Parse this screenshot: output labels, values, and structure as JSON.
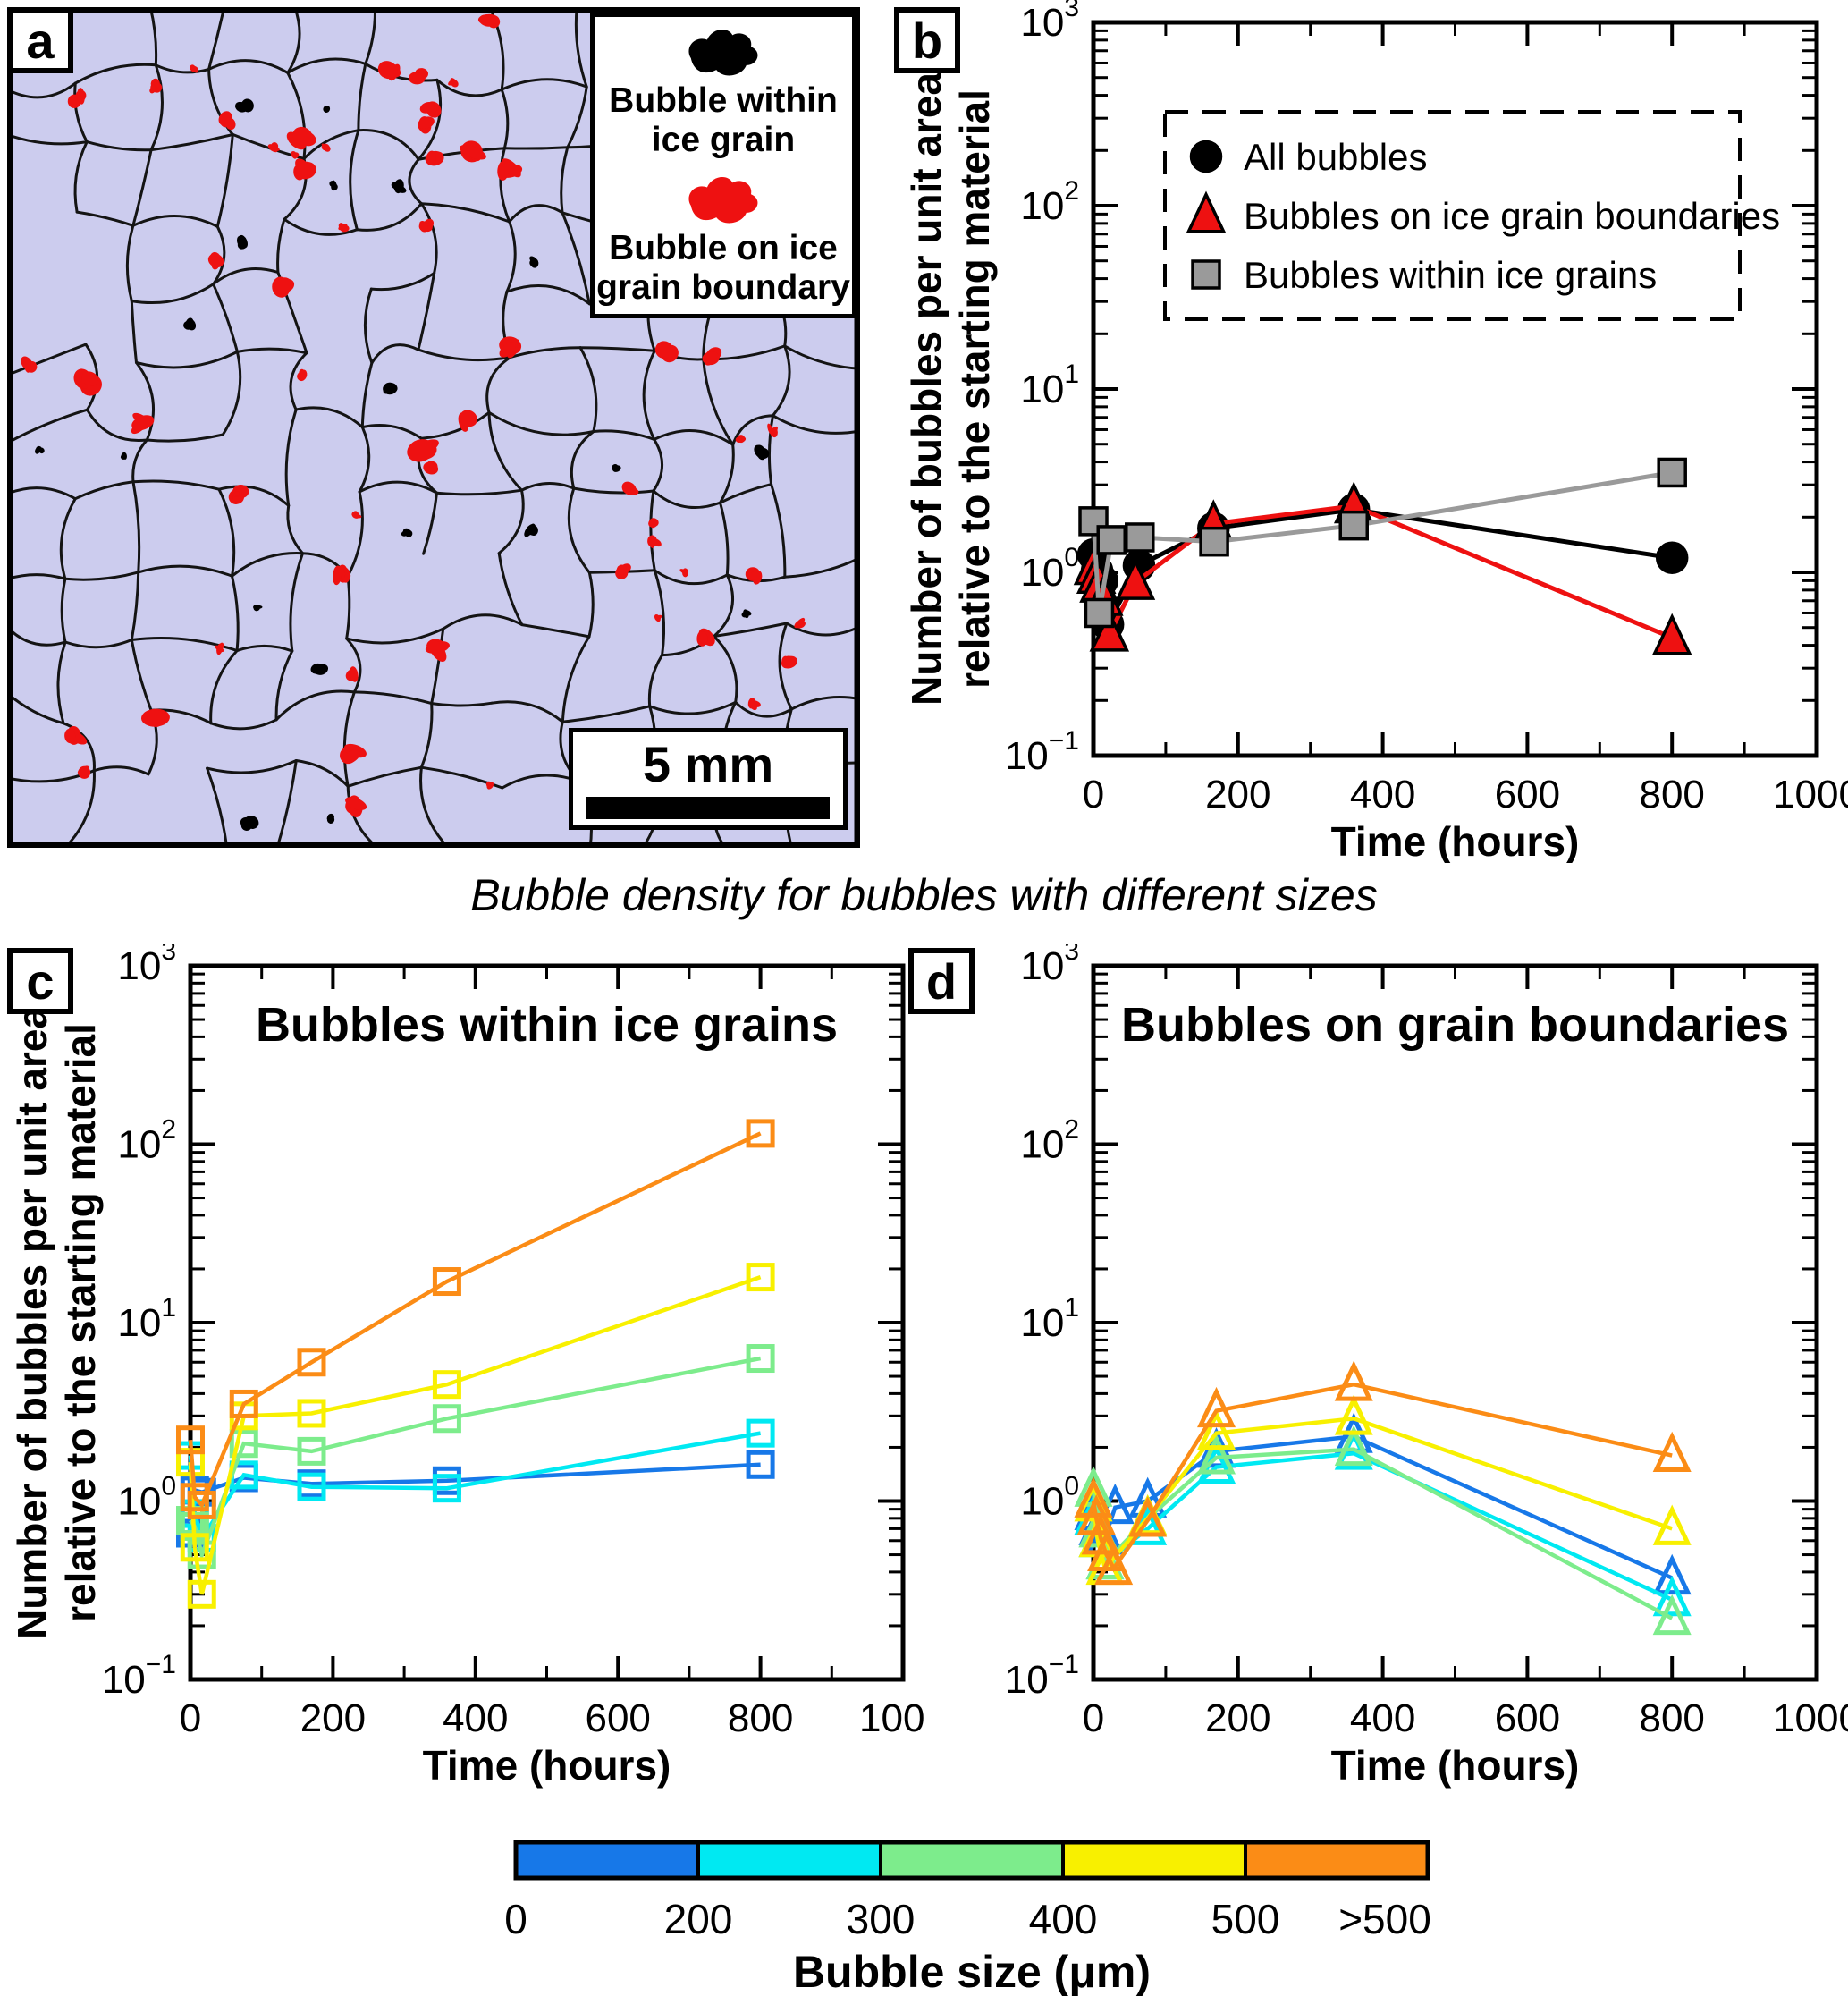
{
  "caption": "Bubble density for bubbles with different sizes",
  "panels": {
    "a": "a",
    "b": "b",
    "c": "c",
    "d": "d"
  },
  "panel_a": {
    "background": "#ccccee",
    "boundary_color": "#141414",
    "bubble_within_color": "#000000",
    "bubble_on_boundary_color": "#ee1111",
    "legend": {
      "items": [
        {
          "icon": "bubble-within-grain-icon",
          "color": "#000000",
          "lines": [
            "Bubble within",
            "ice grain"
          ]
        },
        {
          "icon": "bubble-on-boundary-icon",
          "color": "#ee1111",
          "lines": [
            "Bubble on ice",
            "grain boundary"
          ]
        }
      ]
    },
    "scale_bar": {
      "label": "5 mm"
    }
  },
  "colorbar": {
    "title": "Bubble size (μm)",
    "boundary_labels": [
      "0",
      "200",
      "300",
      "400",
      "500"
    ],
    "end_label": ">500",
    "segment_colors": [
      "#1778e8",
      "#00e9f2",
      "#7dec8c",
      "#f8f000",
      "#fb8c16"
    ]
  },
  "chart_data": [
    {
      "id": "b",
      "type": "line",
      "title": null,
      "xlabel": "Time (hours)",
      "ylabel_lines": [
        "Number of bubbles per unit area",
        "relative to the starting material"
      ],
      "xlim": [
        0,
        1000
      ],
      "xtick_step": 200,
      "xminor_step": 100,
      "yexp": [
        -1,
        3
      ],
      "legend_show": true,
      "series": [
        {
          "name": "All bubbles",
          "marker": "circle",
          "color": "#000000",
          "edge": "#000000",
          "filled": true,
          "x": [
            0,
            5,
            12,
            20,
            63,
            166,
            360,
            800
          ],
          "y": [
            1.25,
            1.02,
            0.9,
            0.52,
            1.09,
            1.74,
            2.2,
            1.2
          ]
        },
        {
          "name": "Bubbles on ice grain boundaries",
          "marker": "triangle",
          "color": "#ee1111",
          "edge": "#000000",
          "filled": true,
          "x": [
            0,
            4,
            8,
            14,
            22,
            58,
            166,
            360,
            800
          ],
          "y": [
            1.06,
            0.95,
            0.85,
            0.72,
            0.46,
            0.88,
            1.84,
            2.3,
            0.44
          ]
        },
        {
          "name": "Bubbles within ice grains",
          "marker": "square",
          "color": "#9a9a9a",
          "edge": "#000000",
          "filled": true,
          "x": [
            0,
            8,
            25,
            64,
            167,
            360,
            800
          ],
          "y": [
            1.9,
            0.6,
            1.5,
            1.55,
            1.47,
            1.8,
            3.5
          ]
        }
      ]
    },
    {
      "id": "c",
      "type": "line",
      "title": "Bubbles within ice grains",
      "xlabel": "Time (hours)",
      "ylabel_lines": [
        "Number of bubbles per unit area",
        "relative to the starting material"
      ],
      "xlim": [
        0,
        1000
      ],
      "xtick_step": 200,
      "xminor_step": 100,
      "yexp": [
        -1,
        3
      ],
      "legend_show": false,
      "series": [
        {
          "name": "size-0-200",
          "marker": "square",
          "color": "#1778e8",
          "filled": false,
          "x": [
            0,
            6,
            16,
            75,
            170,
            360,
            800
          ],
          "y": [
            0.66,
            1.15,
            1.12,
            1.35,
            1.25,
            1.3,
            1.6
          ]
        },
        {
          "name": "size-200-300",
          "marker": "square",
          "color": "#00e9f2",
          "filled": false,
          "x": [
            0,
            6,
            16,
            75,
            170,
            360,
            800
          ],
          "y": [
            1.8,
            0.85,
            0.62,
            1.4,
            1.2,
            1.18,
            2.4
          ]
        },
        {
          "name": "size-300-400",
          "marker": "square",
          "color": "#7dec8c",
          "filled": false,
          "x": [
            0,
            6,
            16,
            75,
            170,
            360,
            800
          ],
          "y": [
            0.78,
            0.72,
            0.5,
            2.1,
            1.9,
            2.9,
            6.3
          ]
        },
        {
          "name": "size-400-500",
          "marker": "square",
          "color": "#f8f000",
          "filled": false,
          "x": [
            0,
            6,
            16,
            75,
            170,
            360,
            800
          ],
          "y": [
            1.65,
            0.55,
            0.3,
            3.0,
            3.1,
            4.5,
            18
          ]
        },
        {
          "name": "size-gt-500",
          "marker": "square",
          "color": "#fb8c16",
          "filled": false,
          "x": [
            0,
            6,
            16,
            75,
            170,
            360,
            800
          ],
          "y": [
            2.2,
            1.05,
            0.95,
            3.5,
            6.0,
            17,
            115
          ]
        }
      ]
    },
    {
      "id": "d",
      "type": "line",
      "title": "Bubbles on grain boundaries",
      "xlabel": "Time (hours)",
      "ylabel_lines": null,
      "xlim": [
        0,
        1000
      ],
      "xtick_step": 200,
      "xminor_step": 100,
      "yexp": [
        -1,
        3
      ],
      "legend_show": false,
      "series": [
        {
          "name": "size-0-200",
          "marker": "triangle",
          "color": "#1778e8",
          "filled": false,
          "x": [
            0,
            6,
            16,
            30,
            75,
            170,
            360,
            800
          ],
          "y": [
            0.85,
            0.7,
            0.62,
            0.92,
            1.0,
            1.9,
            2.3,
            0.37
          ]
        },
        {
          "name": "size-200-300",
          "marker": "triangle",
          "color": "#00e9f2",
          "filled": false,
          "x": [
            0,
            6,
            16,
            75,
            170,
            360,
            800
          ],
          "y": [
            0.8,
            0.6,
            0.45,
            0.7,
            1.55,
            1.85,
            0.28
          ]
        },
        {
          "name": "size-300-400",
          "marker": "triangle",
          "color": "#7dec8c",
          "filled": false,
          "x": [
            0,
            6,
            16,
            75,
            170,
            360,
            800
          ],
          "y": [
            1.15,
            0.68,
            0.45,
            0.8,
            1.75,
            1.95,
            0.22
          ]
        },
        {
          "name": "size-400-500",
          "marker": "triangle",
          "color": "#f8f000",
          "filled": false,
          "x": [
            0,
            6,
            16,
            75,
            170,
            360,
            800
          ],
          "y": [
            0.95,
            0.6,
            0.42,
            0.8,
            2.4,
            2.9,
            0.7
          ]
        },
        {
          "name": "size-gt-500",
          "marker": "triangle",
          "color": "#fb8c16",
          "filled": false,
          "x": [
            0,
            4,
            10,
            18,
            28,
            75,
            170,
            360,
            800
          ],
          "y": [
            1.0,
            0.8,
            0.62,
            0.5,
            0.42,
            0.78,
            3.2,
            4.5,
            1.8
          ]
        }
      ]
    }
  ]
}
